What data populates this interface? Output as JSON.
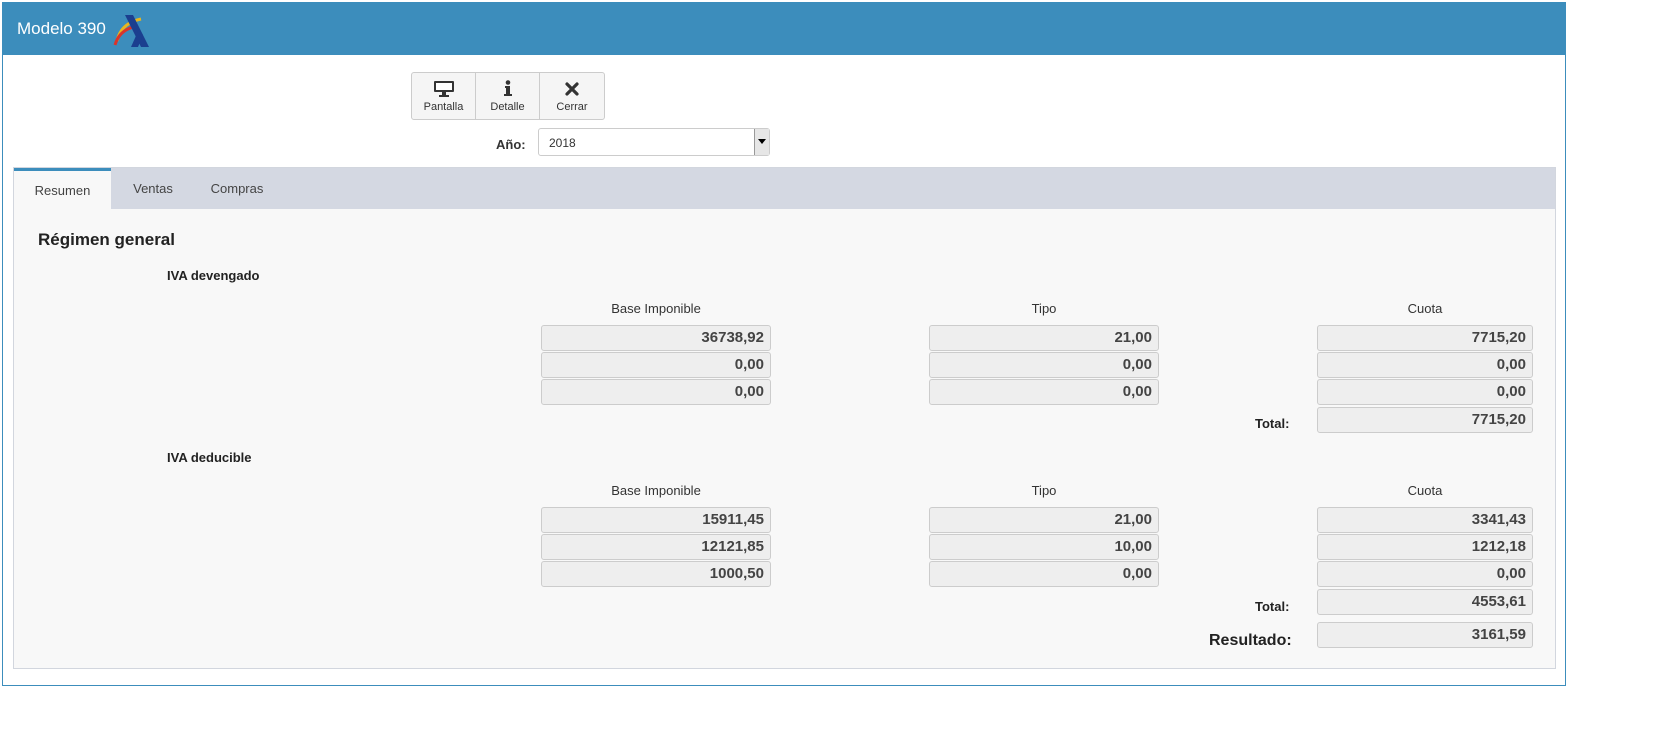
{
  "app": {
    "title": "Modelo 390",
    "logo_icon": "aeat-logo-icon"
  },
  "toolbar": {
    "buttons": [
      {
        "label": "Pantalla",
        "icon": "monitor-icon"
      },
      {
        "label": "Detalle",
        "icon": "info-icon"
      },
      {
        "label": "Cerrar",
        "icon": "close-icon"
      }
    ]
  },
  "year": {
    "label": "Año:",
    "value": "2018"
  },
  "tabs": [
    {
      "label": "Resumen",
      "active": true
    },
    {
      "label": "Ventas",
      "active": false
    },
    {
      "label": "Compras",
      "active": false
    }
  ],
  "section_title": "Régimen general",
  "devengado": {
    "title": "IVA devengado",
    "headers": [
      "Base Imponible",
      "Tipo",
      "Cuota"
    ],
    "rows": [
      [
        "36738,92",
        "21,00",
        "7715,20"
      ],
      [
        "0,00",
        "0,00",
        "0,00"
      ],
      [
        "0,00",
        "0,00",
        "0,00"
      ]
    ],
    "total_label": "Total:",
    "total": "7715,20"
  },
  "deducible": {
    "title": "IVA deducible",
    "headers": [
      "Base Imponible",
      "Tipo",
      "Cuota"
    ],
    "rows": [
      [
        "15911,45",
        "21,00",
        "3341,43"
      ],
      [
        "12121,85",
        "10,00",
        "1212,18"
      ],
      [
        "1000,50",
        "0,00",
        "0,00"
      ]
    ],
    "total_label": "Total:",
    "total": "4553,61"
  },
  "resultado": {
    "label": "Resultado:",
    "value": "3161,59"
  },
  "colors": {
    "accent": "#3c8dbc",
    "tabbar": "#d4d8e2",
    "field_bg": "#eeeeee"
  }
}
